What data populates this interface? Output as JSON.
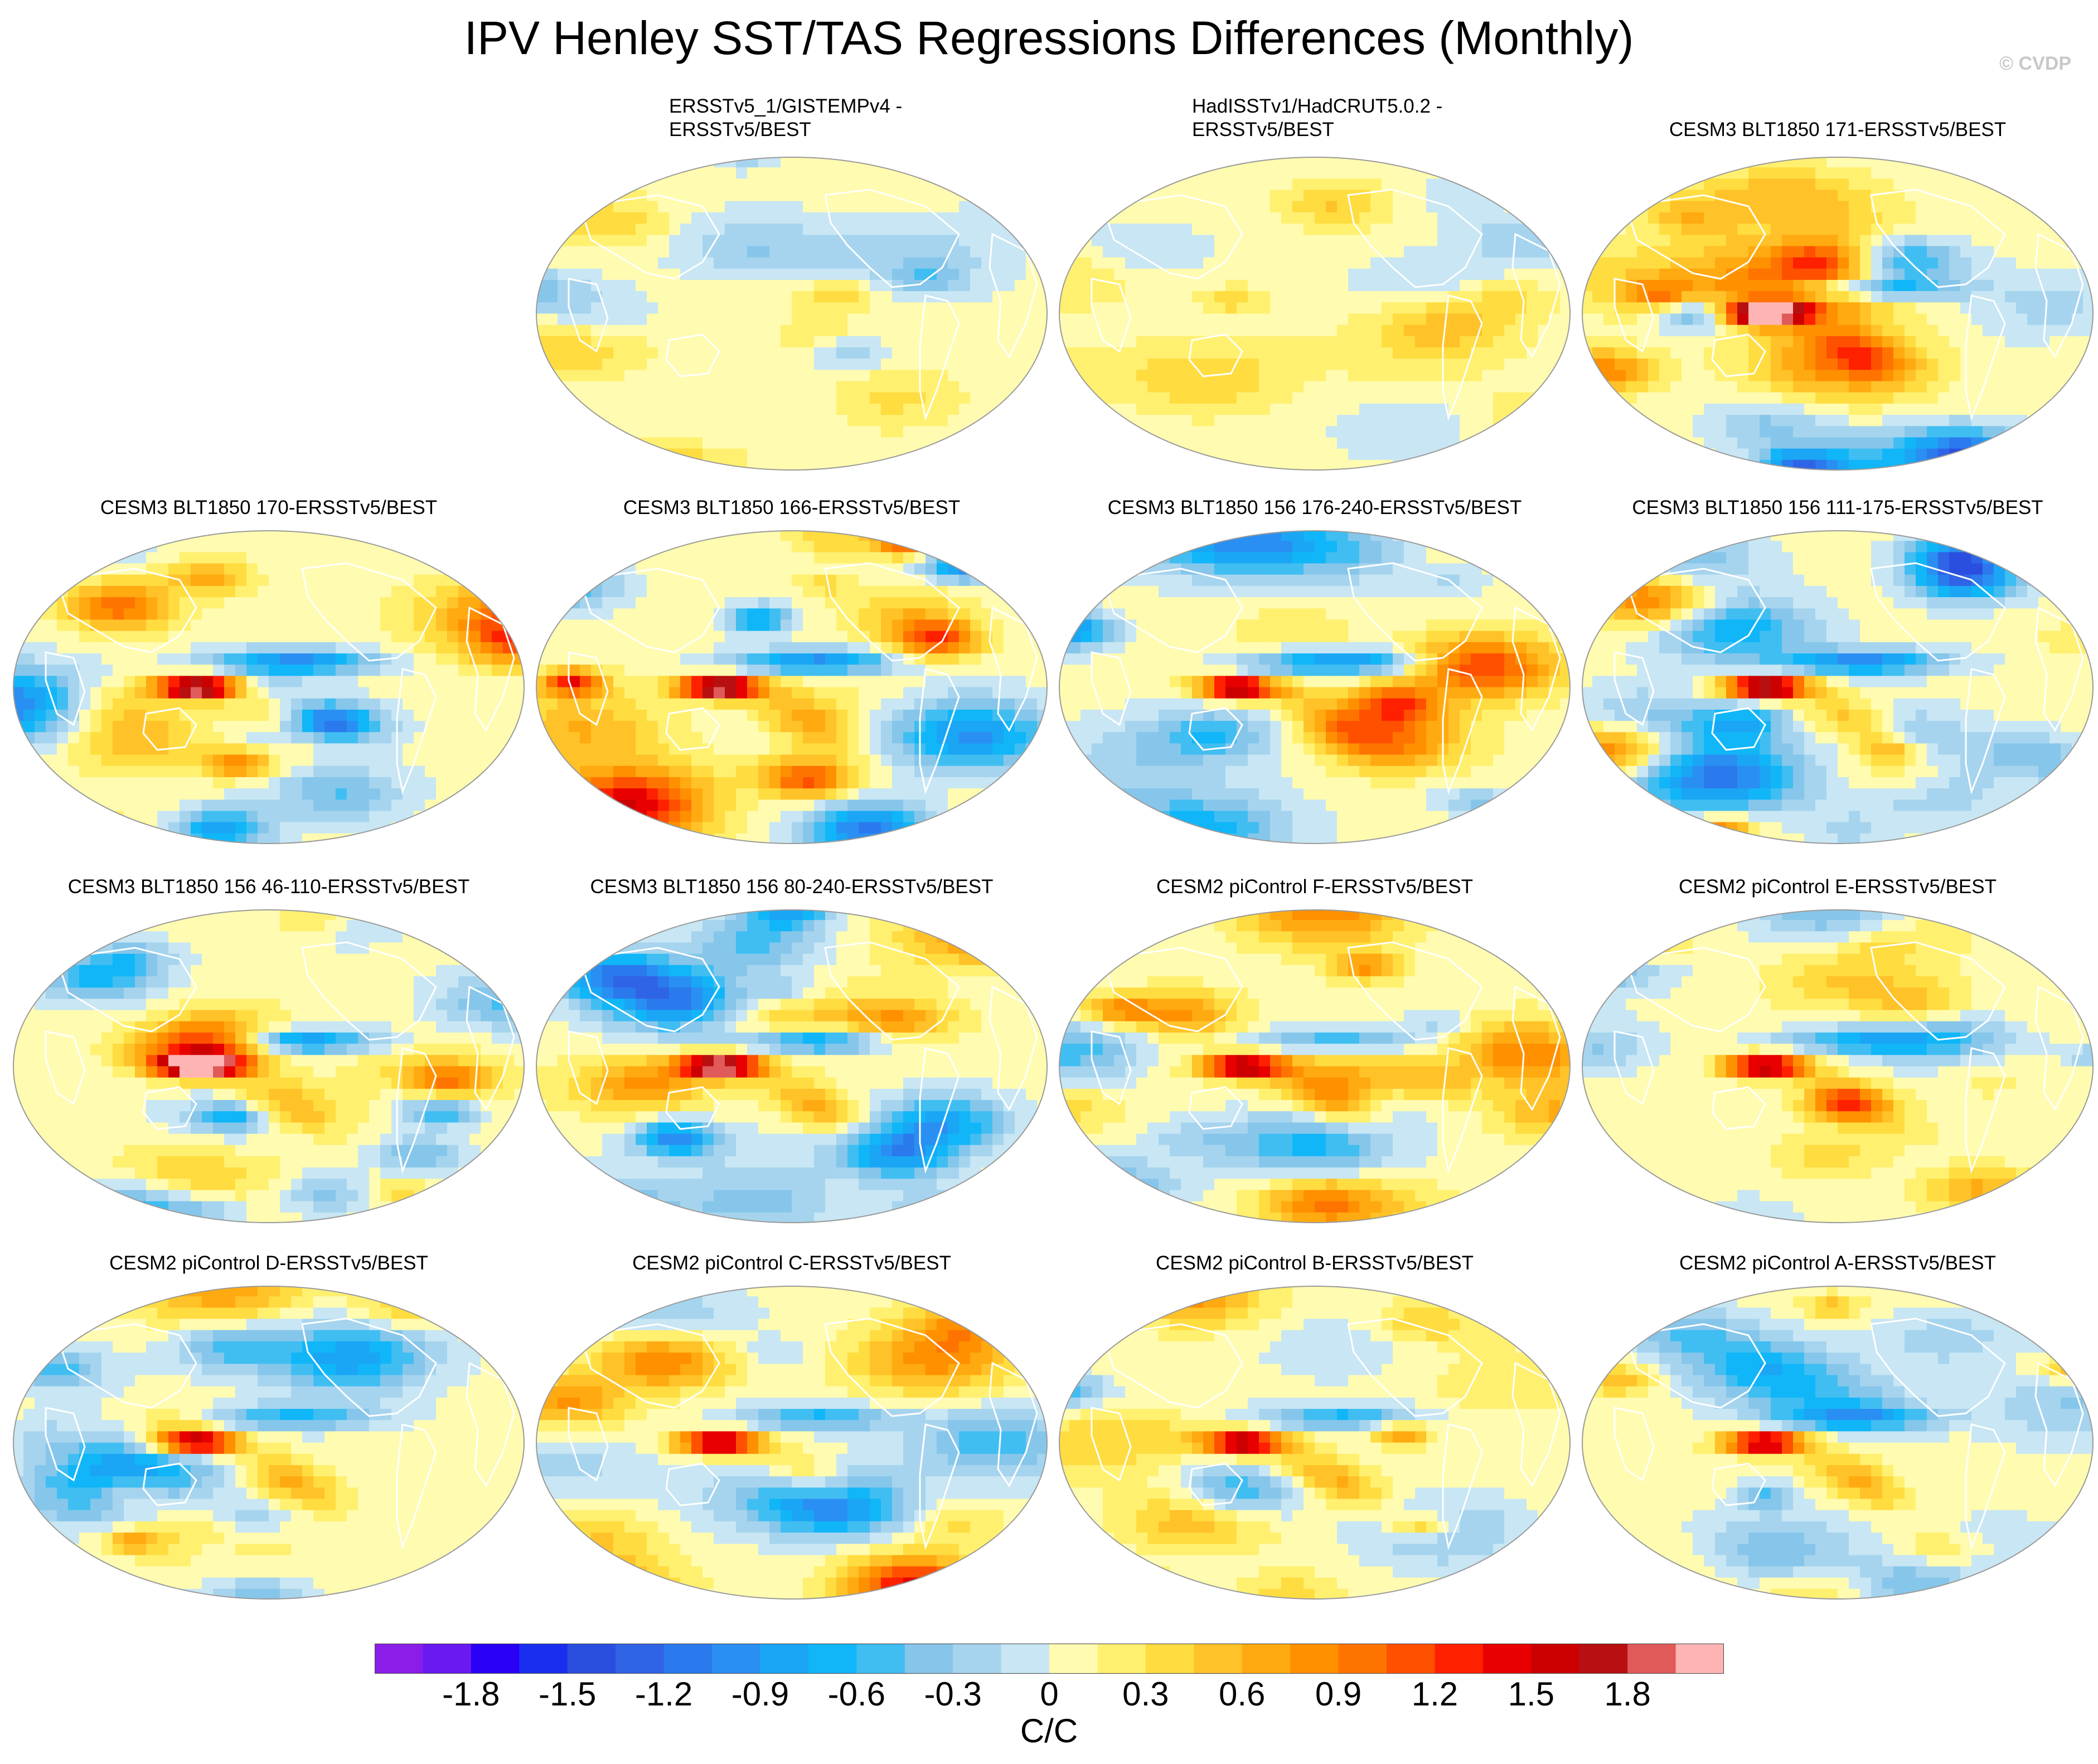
{
  "title": "IPV Henley SST/TAS Regressions Differences (Monthly)",
  "credit": "© CVDP",
  "colorbar": {
    "label": "C/C",
    "ticks": [
      "-1.8",
      "-1.5",
      "-1.2",
      "-0.9",
      "-0.6",
      "-0.3",
      "0",
      "0.3",
      "0.6",
      "0.9",
      "1.2",
      "1.5",
      "1.8"
    ],
    "colors": [
      "#8a1ee8",
      "#6a1af0",
      "#2a00f5",
      "#1a2ef0",
      "#2a4fe0",
      "#3064e6",
      "#2a7aee",
      "#2a8ff2",
      "#1aa6f5",
      "#10b6f8",
      "#40bef2",
      "#86c6ea",
      "#a6d4ee",
      "#c8e6f4",
      "#fffbb0",
      "#fff070",
      "#ffdc40",
      "#ffc228",
      "#ffaa10",
      "#ff9000",
      "#ff7400",
      "#ff5000",
      "#ff2000",
      "#e80000",
      "#cc0000",
      "#b81010",
      "#e05a5a",
      "#ffb4b4"
    ]
  },
  "chart_data": {
    "type": "heatmap",
    "projection": "global map (Robinson-like), Pacific-centered",
    "variable": "IPV Henley SST/TAS regression differences vs ERSSTv5/BEST",
    "units": "C/C",
    "color_range": [
      -1.8,
      1.8
    ],
    "contour_interval": 0.15,
    "panels": [
      {
        "title": "ERSSTv5_1/GISTEMPv4 -\nERSSTv5/BEST",
        "pattern": "weak"
      },
      {
        "title": "HadISSTv1/HadCRUT5.0.2 -\nERSSTv5/BEST",
        "pattern": "weak"
      },
      {
        "title": "CESM3 BLT1850 171-ERSSTv5/BEST",
        "pattern": "strong"
      },
      {
        "title": "CESM3 BLT1850 170-ERSSTv5/BEST",
        "pattern": "strong"
      },
      {
        "title": "CESM3 BLT1850 166-ERSSTv5/BEST",
        "pattern": "strong"
      },
      {
        "title": "CESM3 BLT1850 156 176-240-ERSSTv5/BEST",
        "pattern": "strong"
      },
      {
        "title": "CESM3 BLT1850 156 111-175-ERSSTv5/BEST",
        "pattern": "strong"
      },
      {
        "title": "CESM3 BLT1850 156 46-110-ERSSTv5/BEST",
        "pattern": "strong"
      },
      {
        "title": "CESM3 BLT1850 156 80-240-ERSSTv5/BEST",
        "pattern": "strong"
      },
      {
        "title": "CESM2 piControl F-ERSSTv5/BEST",
        "pattern": "moderate"
      },
      {
        "title": "CESM2 piControl E-ERSSTv5/BEST",
        "pattern": "moderate"
      },
      {
        "title": "CESM2 piControl D-ERSSTv5/BEST",
        "pattern": "moderate"
      },
      {
        "title": "CESM2 piControl C-ERSSTv5/BEST",
        "pattern": "moderate"
      },
      {
        "title": "CESM2 piControl B-ERSSTv5/BEST",
        "pattern": "moderate"
      },
      {
        "title": "CESM2 piControl A-ERSSTv5/BEST",
        "pattern": "moderate"
      }
    ]
  }
}
